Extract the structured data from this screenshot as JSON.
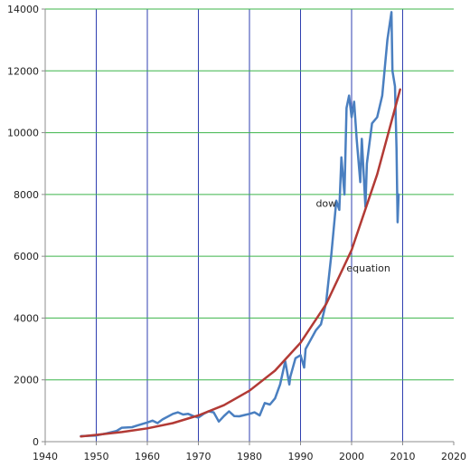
{
  "chart_data": {
    "type": "line",
    "title": "",
    "xlabel": "",
    "ylabel": "",
    "xlim": [
      1940,
      2020
    ],
    "ylim": [
      0,
      14000
    ],
    "x_ticks": [
      1940,
      1950,
      1960,
      1970,
      1980,
      1990,
      2000,
      2010,
      2020
    ],
    "y_ticks": [
      0,
      2000,
      4000,
      6000,
      8000,
      10000,
      12000,
      14000
    ],
    "grid": {
      "vertical": true,
      "horizontal": true
    },
    "colors": {
      "vertical_grid": "#2f3fb0",
      "horizontal_grid": "#3cb54a",
      "dow": "#4a7fc0",
      "equation": "#b23a35",
      "axis": "#8c8c8c"
    },
    "series": [
      {
        "name": "dow",
        "label_position": [
          1993,
          7600
        ],
        "x": [
          1947,
          1950,
          1952,
          1954,
          1955,
          1957,
          1958,
          1960,
          1961,
          1962,
          1963,
          1965,
          1966,
          1967,
          1968,
          1969,
          1970,
          1971,
          1972,
          1973,
          1974,
          1975,
          1976,
          1977,
          1978,
          1979,
          1980,
          1981,
          1982,
          1983,
          1984,
          1985,
          1986,
          1987,
          1987.8,
          1988,
          1989,
          1990,
          1990.7,
          1991,
          1992,
          1993,
          1994,
          1995,
          1996,
          1997,
          1997.6,
          1998,
          1998.6,
          1999,
          1999.5,
          2000,
          2000.5,
          2001,
          2001.7,
          2002,
          2002.7,
          2003,
          2004,
          2005,
          2006,
          2007,
          2007.8,
          2008,
          2008.5,
          2008.8,
          2009,
          2009.2
        ],
        "values": [
          180,
          200,
          270,
          350,
          450,
          470,
          520,
          620,
          680,
          600,
          720,
          900,
          950,
          880,
          900,
          830,
          780,
          900,
          980,
          950,
          650,
          830,
          980,
          830,
          820,
          860,
          900,
          950,
          850,
          1250,
          1200,
          1400,
          1850,
          2600,
          1850,
          2100,
          2700,
          2800,
          2400,
          3000,
          3300,
          3600,
          3800,
          4500,
          6000,
          7800,
          7500,
          9200,
          8000,
          10800,
          11200,
          10500,
          11000,
          9800,
          8400,
          9800,
          7600,
          9000,
          10300,
          10500,
          11200,
          13000,
          13900,
          12000,
          11500,
          9500,
          7100,
          8000
        ]
      },
      {
        "name": "equation",
        "label_position": [
          1999,
          5500
        ],
        "x": [
          1947,
          1950,
          1955,
          1960,
          1965,
          1970,
          1975,
          1980,
          1985,
          1990,
          1995,
          2000,
          2005,
          2009.5
        ],
        "values": [
          170,
          220,
          310,
          430,
          600,
          850,
          1180,
          1650,
          2300,
          3200,
          4450,
          6200,
          8650,
          11400
        ]
      }
    ]
  }
}
